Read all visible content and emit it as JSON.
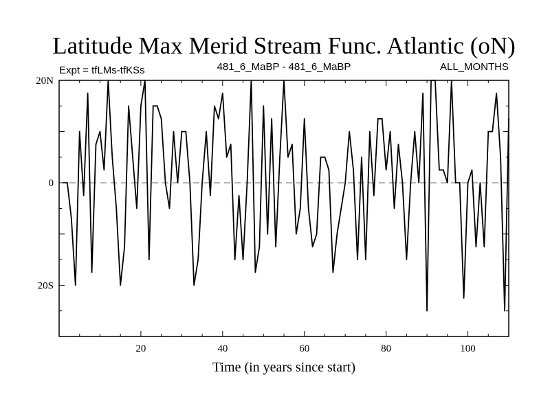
{
  "chart_data": {
    "type": "line",
    "title": "Latitude Max Merid Stream Func. Atlantic (oN)",
    "expt_label": "Expt = tfLMs-tfKSs",
    "center_label": "481_6_MaBP - 481_6_MaBP",
    "right_label": "ALL_MONTHS",
    "xlabel": "Time (in years since start)",
    "ylabel": "",
    "xlim": [
      0,
      110
    ],
    "ylim": [
      -30,
      20
    ],
    "x_ticks": [
      20,
      40,
      60,
      80,
      100
    ],
    "y_ticks": [
      20,
      0,
      -20
    ],
    "y_tick_labels": [
      "20N",
      "0",
      "20S"
    ],
    "reference_line": 0,
    "series": [
      {
        "name": "Latitude max",
        "x": [
          1,
          2,
          3,
          4,
          5,
          6,
          7,
          8,
          9,
          10,
          11,
          12,
          13,
          14,
          15,
          16,
          17,
          18,
          19,
          20,
          21,
          22,
          23,
          24,
          25,
          26,
          27,
          28,
          29,
          30,
          31,
          32,
          33,
          34,
          35,
          36,
          37,
          38,
          39,
          40,
          41,
          42,
          43,
          44,
          45,
          46,
          47,
          48,
          49,
          50,
          51,
          52,
          53,
          54,
          55,
          56,
          57,
          58,
          59,
          60,
          61,
          62,
          63,
          64,
          65,
          66,
          67,
          68,
          69,
          70,
          71,
          72,
          73,
          74,
          75,
          76,
          77,
          78,
          79,
          80,
          81,
          82,
          83,
          84,
          85,
          86,
          87,
          88,
          89,
          90,
          91,
          92,
          93,
          94,
          95,
          96,
          97,
          98,
          99,
          100,
          101,
          102,
          103,
          104,
          105,
          106,
          107,
          108,
          109,
          110
        ],
        "values": [
          0,
          0,
          -7,
          -20,
          10,
          -2.5,
          17.5,
          -17.5,
          7.5,
          10,
          2.5,
          20,
          5,
          -5,
          -20,
          -12.5,
          15,
          5,
          -5,
          15,
          20,
          -15,
          15,
          15,
          12.5,
          0,
          -5,
          10,
          0,
          10,
          10,
          0,
          -20,
          -15,
          0,
          10,
          -2.5,
          15,
          12.5,
          17.5,
          5,
          7.5,
          -15,
          -2.5,
          -15,
          0,
          20,
          -17.5,
          -12.5,
          15,
          -10,
          12.5,
          -12.5,
          5,
          20,
          5,
          7.5,
          -10,
          -5,
          12.5,
          -5,
          -12.5,
          -10,
          5,
          5,
          2.5,
          -17.5,
          -10,
          -5,
          0,
          10,
          2.5,
          -15,
          5,
          -15,
          10,
          -2.5,
          12.5,
          12.5,
          2.5,
          10,
          -5,
          7.5,
          0,
          -15,
          0,
          10,
          0,
          17.5,
          -25,
          20,
          20,
          2.5,
          2.5,
          0,
          20,
          0,
          0,
          -22.5,
          0,
          2.5,
          -12.5,
          0,
          -12.5,
          10,
          10,
          17.5,
          5,
          -25,
          12.5
        ]
      }
    ]
  }
}
